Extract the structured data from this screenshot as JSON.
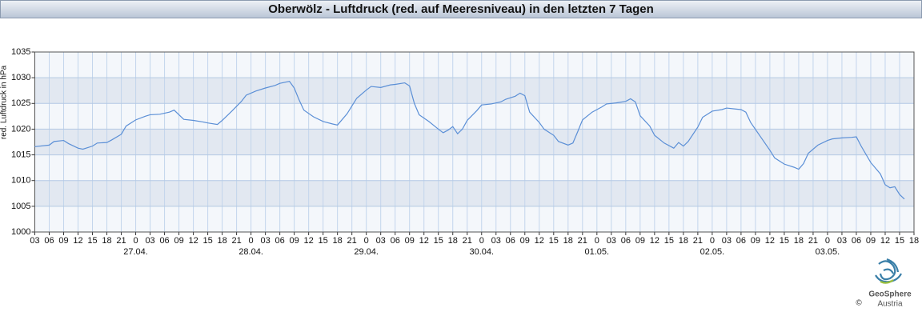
{
  "chart_data": {
    "type": "line",
    "title": "Oberwölz - Luftdruck (red. auf Meeresniveau) in den letzten 7 Tagen",
    "y_label": "red. Luftdruck in hPa",
    "color": "#5b8fd6",
    "grid": true,
    "ylim": [
      1000,
      1035
    ],
    "yticks": [
      1000,
      1005,
      1010,
      1015,
      1020,
      1025,
      1030,
      1035
    ],
    "xlim": [
      3,
      186
    ],
    "xticks": [
      {
        "value": 3,
        "label": "03"
      },
      {
        "value": 6,
        "label": "06"
      },
      {
        "value": 9,
        "label": "09"
      },
      {
        "value": 12,
        "label": "12"
      },
      {
        "value": 15,
        "label": "15"
      },
      {
        "value": 18,
        "label": "18"
      },
      {
        "value": 21,
        "label": "21"
      },
      {
        "value": 24,
        "label": "0"
      },
      {
        "value": 27,
        "label": "03"
      },
      {
        "value": 30,
        "label": "06"
      },
      {
        "value": 33,
        "label": "09"
      },
      {
        "value": 36,
        "label": "12"
      },
      {
        "value": 39,
        "label": "15"
      },
      {
        "value": 42,
        "label": "18"
      },
      {
        "value": 45,
        "label": "21"
      },
      {
        "value": 48,
        "label": "0"
      },
      {
        "value": 51,
        "label": "03"
      },
      {
        "value": 54,
        "label": "06"
      },
      {
        "value": 57,
        "label": "09"
      },
      {
        "value": 60,
        "label": "12"
      },
      {
        "value": 63,
        "label": "15"
      },
      {
        "value": 66,
        "label": "18"
      },
      {
        "value": 69,
        "label": "21"
      },
      {
        "value": 72,
        "label": "0"
      },
      {
        "value": 75,
        "label": "03"
      },
      {
        "value": 78,
        "label": "06"
      },
      {
        "value": 81,
        "label": "09"
      },
      {
        "value": 84,
        "label": "12"
      },
      {
        "value": 87,
        "label": "15"
      },
      {
        "value": 90,
        "label": "18"
      },
      {
        "value": 93,
        "label": "21"
      },
      {
        "value": 96,
        "label": "0"
      },
      {
        "value": 99,
        "label": "03"
      },
      {
        "value": 102,
        "label": "06"
      },
      {
        "value": 105,
        "label": "09"
      },
      {
        "value": 108,
        "label": "12"
      },
      {
        "value": 111,
        "label": "15"
      },
      {
        "value": 114,
        "label": "18"
      },
      {
        "value": 117,
        "label": "21"
      },
      {
        "value": 120,
        "label": "0"
      },
      {
        "value": 123,
        "label": "03"
      },
      {
        "value": 126,
        "label": "06"
      },
      {
        "value": 129,
        "label": "09"
      },
      {
        "value": 132,
        "label": "12"
      },
      {
        "value": 135,
        "label": "15"
      },
      {
        "value": 138,
        "label": "18"
      },
      {
        "value": 141,
        "label": "21"
      },
      {
        "value": 144,
        "label": "0"
      },
      {
        "value": 147,
        "label": "03"
      },
      {
        "value": 150,
        "label": "06"
      },
      {
        "value": 153,
        "label": "09"
      },
      {
        "value": 156,
        "label": "12"
      },
      {
        "value": 159,
        "label": "15"
      },
      {
        "value": 162,
        "label": "18"
      },
      {
        "value": 165,
        "label": "21"
      },
      {
        "value": 168,
        "label": "0"
      },
      {
        "value": 171,
        "label": "03"
      },
      {
        "value": 174,
        "label": "06"
      },
      {
        "value": 177,
        "label": "09"
      },
      {
        "value": 180,
        "label": "12"
      },
      {
        "value": 183,
        "label": "15"
      },
      {
        "value": 186,
        "label": "18"
      }
    ],
    "date_labels": [
      {
        "value": 24,
        "label": "27.04."
      },
      {
        "value": 48,
        "label": "28.04."
      },
      {
        "value": 72,
        "label": "29.04."
      },
      {
        "value": 96,
        "label": "30.04."
      },
      {
        "value": 120,
        "label": "01.05."
      },
      {
        "value": 144,
        "label": "02.05."
      },
      {
        "value": 168,
        "label": "03.05."
      }
    ],
    "x": [
      3,
      6,
      7,
      9,
      10,
      12,
      13,
      15,
      16,
      18,
      19,
      21,
      22,
      24,
      26,
      27,
      29,
      31,
      32,
      33,
      34,
      36,
      38,
      39,
      41,
      42,
      44,
      46,
      47,
      49,
      51,
      53,
      54,
      56,
      57,
      58,
      59,
      61,
      63,
      65,
      66,
      68,
      70,
      72,
      73,
      75,
      77,
      78,
      80,
      81,
      82,
      83,
      85,
      87,
      88,
      89,
      90,
      91,
      92,
      93,
      95,
      96,
      98,
      100,
      101,
      103,
      104,
      105,
      106,
      108,
      109,
      111,
      112,
      114,
      115,
      116,
      117,
      119,
      121,
      122,
      124,
      126,
      127,
      128,
      129,
      131,
      132,
      134,
      136,
      137,
      138,
      139,
      141,
      142,
      144,
      146,
      147,
      149,
      150,
      151,
      152,
      154,
      156,
      157,
      159,
      161,
      162,
      163,
      164,
      166,
      168,
      169,
      171,
      173,
      174,
      175,
      177,
      179,
      180,
      181,
      182,
      183,
      184
    ],
    "values": [
      1016.6,
      1016.9,
      1017.6,
      1017.8,
      1017.2,
      1016.3,
      1016.1,
      1016.7,
      1017.3,
      1017.4,
      1017.9,
      1019.0,
      1020.6,
      1021.8,
      1022.5,
      1022.8,
      1022.9,
      1023.3,
      1023.7,
      1022.8,
      1021.9,
      1021.7,
      1021.4,
      1021.2,
      1020.9,
      1021.7,
      1023.5,
      1025.4,
      1026.6,
      1027.4,
      1028.0,
      1028.5,
      1028.9,
      1029.3,
      1028.0,
      1025.7,
      1023.7,
      1022.4,
      1021.5,
      1021.0,
      1020.8,
      1023.0,
      1026.0,
      1027.6,
      1028.3,
      1028.1,
      1028.6,
      1028.7,
      1029.0,
      1028.4,
      1025.0,
      1022.8,
      1021.5,
      1020.0,
      1019.3,
      1019.8,
      1020.5,
      1019.1,
      1020.0,
      1021.7,
      1023.6,
      1024.7,
      1024.9,
      1025.3,
      1025.8,
      1026.4,
      1027.0,
      1026.5,
      1023.3,
      1021.3,
      1020.0,
      1018.8,
      1017.6,
      1016.9,
      1017.3,
      1019.5,
      1021.8,
      1023.3,
      1024.3,
      1024.9,
      1025.1,
      1025.4,
      1025.9,
      1025.3,
      1022.6,
      1020.6,
      1018.8,
      1017.3,
      1016.3,
      1017.4,
      1016.7,
      1017.6,
      1020.4,
      1022.3,
      1023.5,
      1023.8,
      1024.1,
      1023.9,
      1023.8,
      1023.3,
      1021.3,
      1018.6,
      1015.9,
      1014.4,
      1013.2,
      1012.6,
      1012.2,
      1013.3,
      1015.3,
      1016.9,
      1017.8,
      1018.1,
      1018.3,
      1018.4,
      1018.5,
      1016.7,
      1013.5,
      1011.3,
      1009.2,
      1008.6,
      1008.8,
      1007.3,
      1006.4
    ]
  },
  "logo": {
    "name": "GeoSphere",
    "sub": "Austria",
    "copyright": "©"
  }
}
